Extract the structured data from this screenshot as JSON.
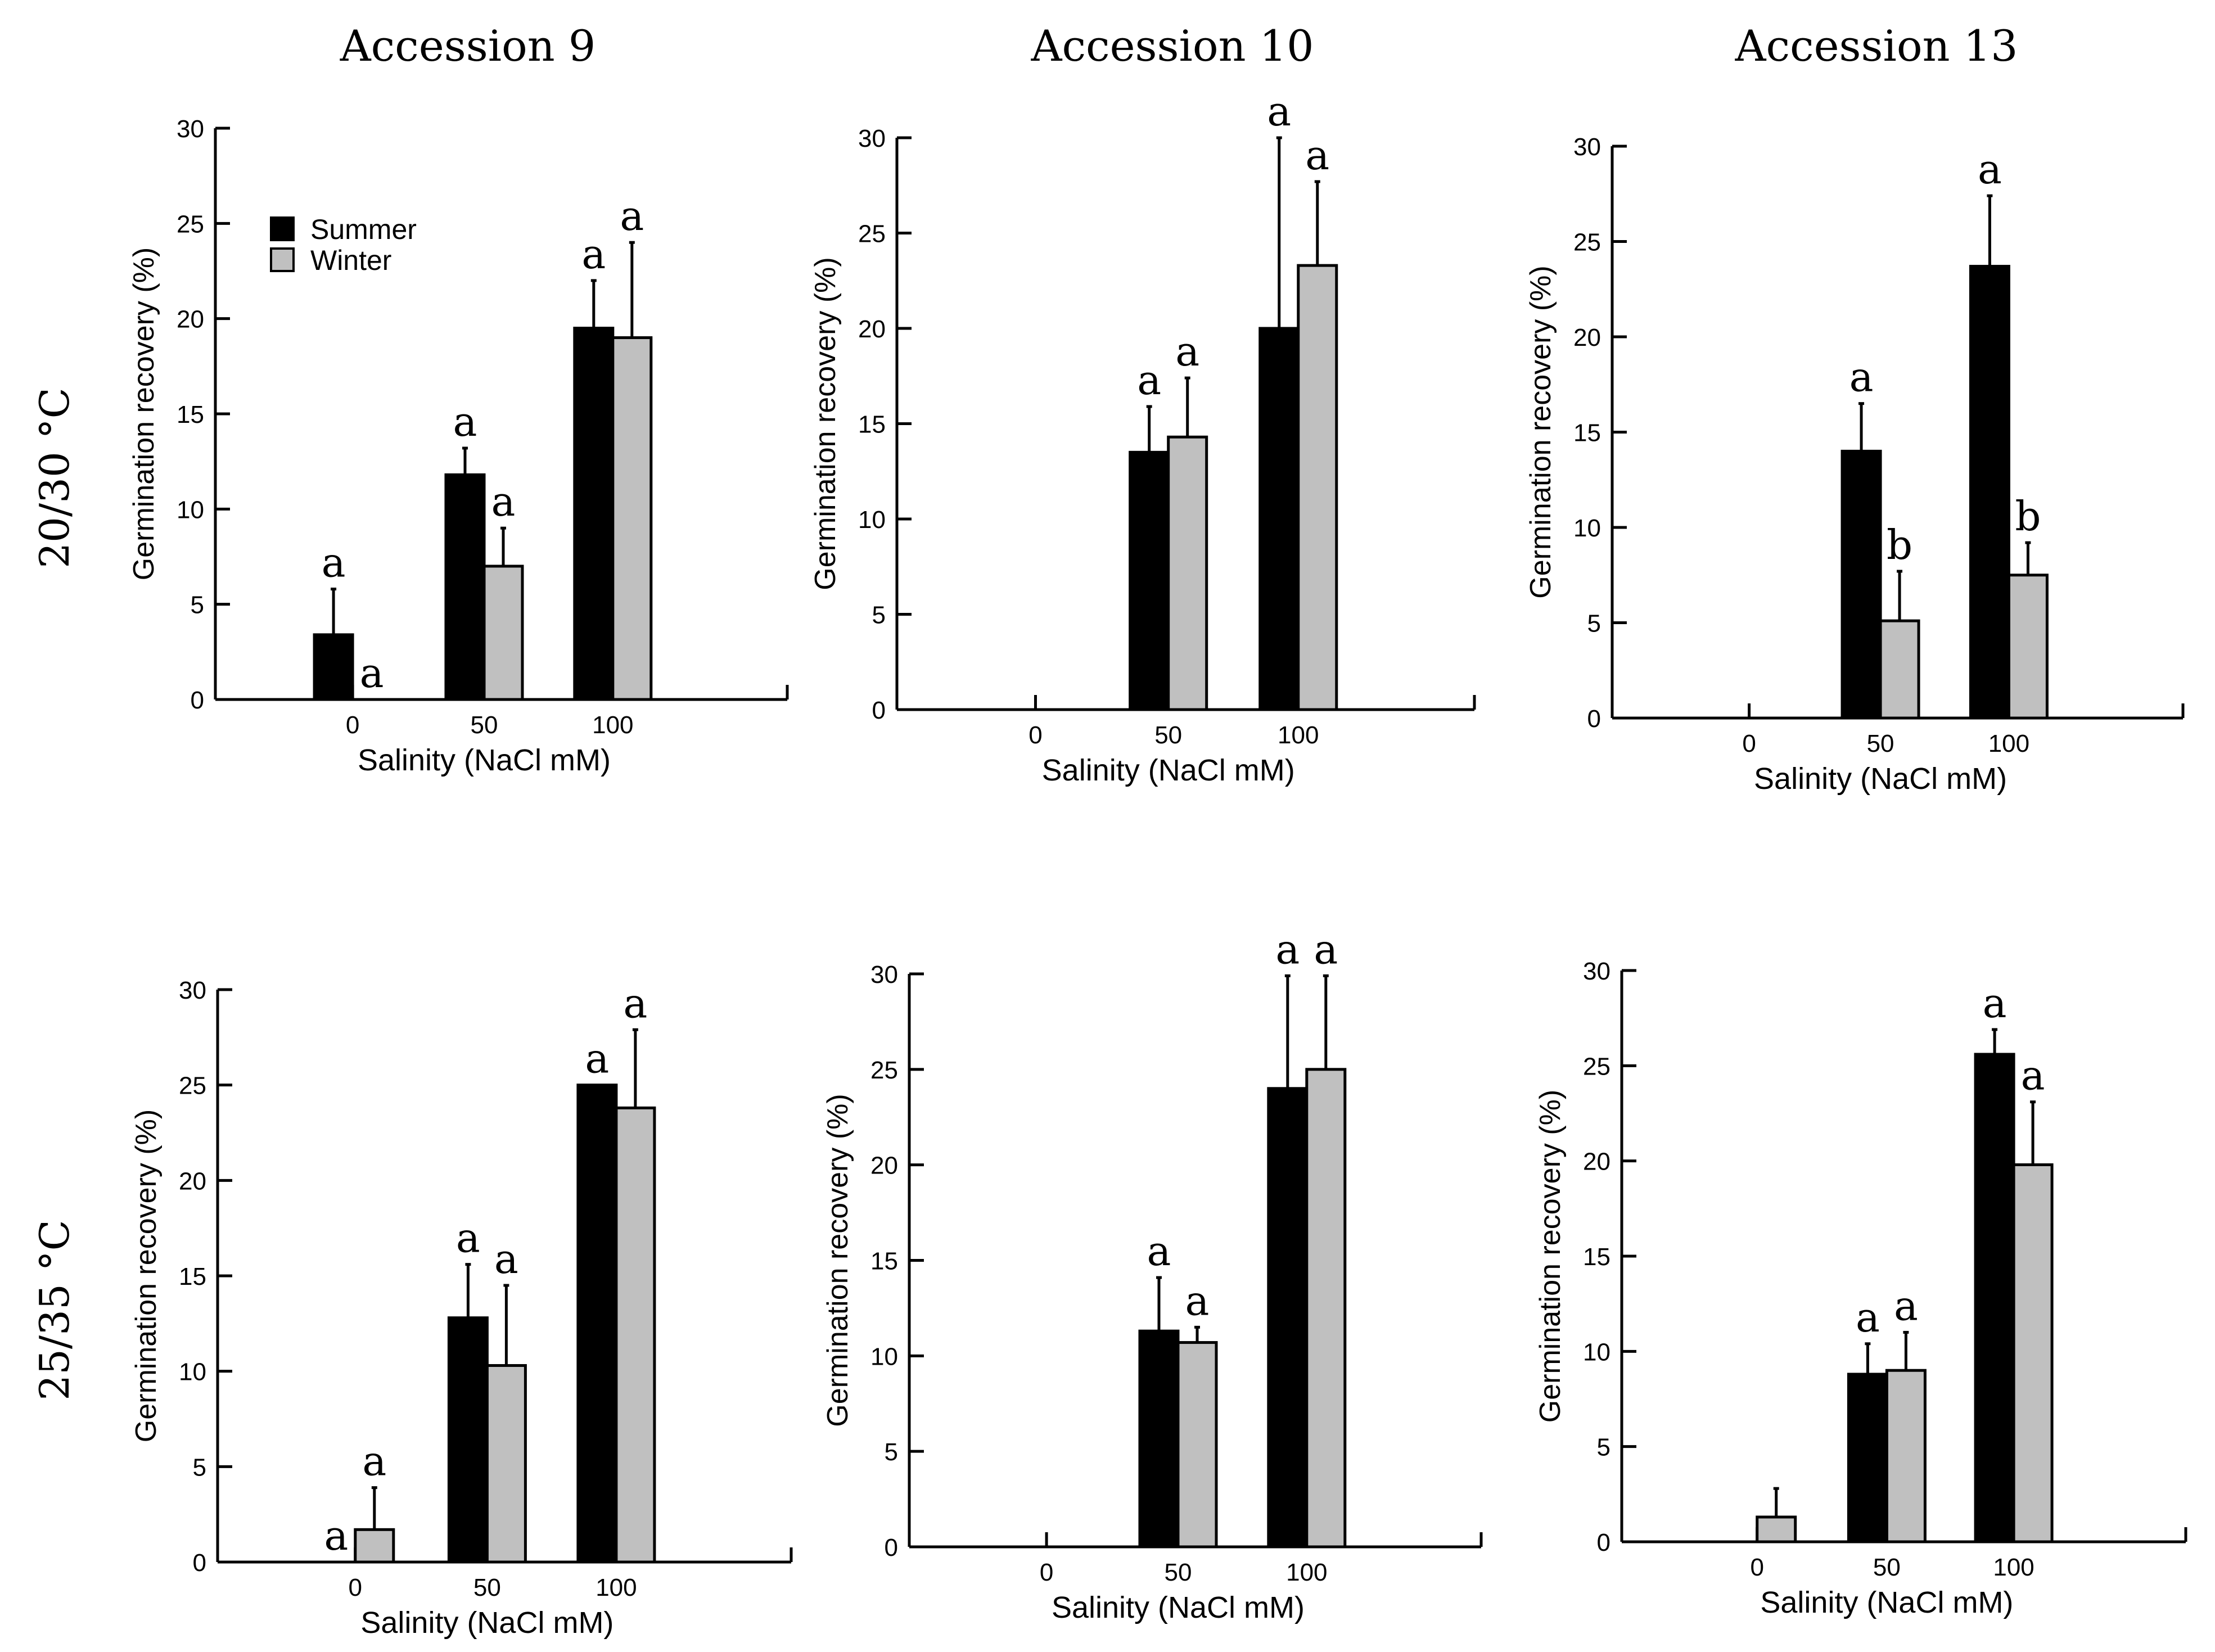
{
  "figure": {
    "column_titles": [
      "Accession 9",
      "Accession 10",
      "Accession 13"
    ],
    "row_labels": [
      "20/30 °C",
      "25/35 °C"
    ],
    "legend": {
      "entries": [
        "Summer",
        "Winter"
      ]
    },
    "colors": {
      "summer": "#000000",
      "winter": "#c0c0c0",
      "axis": "#000000"
    }
  },
  "chart_data": [
    {
      "type": "bar",
      "panel": "Accession 9, 20/30 °C",
      "categories": [
        "0",
        "50",
        "100"
      ],
      "xlabel": "Salinity (NaCl mM)",
      "ylabel": "Germination recovery (%)",
      "ylim": [
        0,
        30
      ],
      "yticks": [
        0,
        5,
        10,
        15,
        20,
        25,
        30
      ],
      "legend": "top-left",
      "series": [
        {
          "name": "Summer",
          "values": [
            3.4,
            11.8,
            19.5
          ],
          "errors": [
            2.4,
            1.4,
            2.5
          ],
          "letters": [
            "a",
            "a",
            "a"
          ]
        },
        {
          "name": "Winter",
          "values": [
            0,
            7.0,
            19.0
          ],
          "errors": [
            0,
            2.0,
            5.0
          ],
          "letters": [
            "a",
            "a",
            "a"
          ]
        }
      ]
    },
    {
      "type": "bar",
      "panel": "Accession 10, 20/30 °C",
      "categories": [
        "0",
        "50",
        "100"
      ],
      "xlabel": "Salinity (NaCl mM)",
      "ylabel": "Germination recovery (%)",
      "ylim": [
        0,
        30
      ],
      "yticks": [
        0,
        5,
        10,
        15,
        20,
        25,
        30
      ],
      "series": [
        {
          "name": "Summer",
          "values": [
            0,
            13.5,
            20.0
          ],
          "errors": [
            0,
            2.4,
            10.0
          ],
          "letters": [
            "",
            "a",
            "a"
          ]
        },
        {
          "name": "Winter",
          "values": [
            0,
            14.3,
            23.3
          ],
          "errors": [
            0,
            3.1,
            4.4
          ],
          "letters": [
            "",
            "a",
            "a"
          ]
        }
      ]
    },
    {
      "type": "bar",
      "panel": "Accession 13, 20/30 °C",
      "categories": [
        "0",
        "50",
        "100"
      ],
      "xlabel": "Salinity (NaCl mM)",
      "ylabel": "Germination recovery (%)",
      "ylim": [
        0,
        30
      ],
      "yticks": [
        0,
        5,
        10,
        15,
        20,
        25,
        30
      ],
      "series": [
        {
          "name": "Summer",
          "values": [
            0,
            14.0,
            23.7
          ],
          "errors": [
            0,
            2.5,
            3.7
          ],
          "letters": [
            "",
            "a",
            "a"
          ]
        },
        {
          "name": "Winter",
          "values": [
            0,
            5.1,
            7.5
          ],
          "errors": [
            0,
            2.6,
            1.7
          ],
          "letters": [
            "",
            "b",
            "b"
          ]
        }
      ]
    },
    {
      "type": "bar",
      "panel": "Accession 9, 25/35 °C",
      "categories": [
        "0",
        "50",
        "100"
      ],
      "xlabel": "Salinity (NaCl mM)",
      "ylabel": "Germination recovery (%)",
      "ylim": [
        0,
        30
      ],
      "yticks": [
        0,
        5,
        10,
        15,
        20,
        25,
        30
      ],
      "series": [
        {
          "name": "Summer",
          "values": [
            0,
            12.8,
            25.0
          ],
          "errors": [
            0,
            2.8,
            0
          ],
          "letters": [
            "a",
            "a",
            "a"
          ]
        },
        {
          "name": "Winter",
          "values": [
            1.7,
            10.3,
            23.8
          ],
          "errors": [
            2.2,
            4.2,
            4.1
          ],
          "letters": [
            "a",
            "a",
            "a"
          ]
        }
      ]
    },
    {
      "type": "bar",
      "panel": "Accession 10, 25/35 °C",
      "categories": [
        "0",
        "50",
        "100"
      ],
      "xlabel": "Salinity (NaCl mM)",
      "ylabel": "Germination recovery (%)",
      "ylim": [
        0,
        30
      ],
      "yticks": [
        0,
        5,
        10,
        15,
        20,
        25,
        30
      ],
      "series": [
        {
          "name": "Summer",
          "values": [
            0,
            11.3,
            24.0
          ],
          "errors": [
            0,
            2.8,
            5.9
          ],
          "letters": [
            "",
            "a",
            "a"
          ]
        },
        {
          "name": "Winter",
          "values": [
            0,
            10.7,
            25.0
          ],
          "errors": [
            0,
            0.8,
            4.9
          ],
          "letters": [
            "",
            "a",
            "a"
          ]
        }
      ]
    },
    {
      "type": "bar",
      "panel": "Accession 13, 25/35 °C",
      "categories": [
        "0",
        "50",
        "100"
      ],
      "xlabel": "Salinity (NaCl mM)",
      "ylabel": "Germination recovery (%)",
      "ylim": [
        0,
        30
      ],
      "yticks": [
        0,
        5,
        10,
        15,
        20,
        25,
        30
      ],
      "series": [
        {
          "name": "Summer",
          "values": [
            0,
            8.8,
            25.6
          ],
          "errors": [
            0,
            1.6,
            1.3
          ],
          "letters": [
            "",
            "a",
            "a"
          ]
        },
        {
          "name": "Winter",
          "values": [
            1.3,
            9.0,
            19.8
          ],
          "errors": [
            1.5,
            2.0,
            3.3
          ],
          "letters": [
            "",
            "a",
            "a"
          ]
        }
      ]
    }
  ]
}
